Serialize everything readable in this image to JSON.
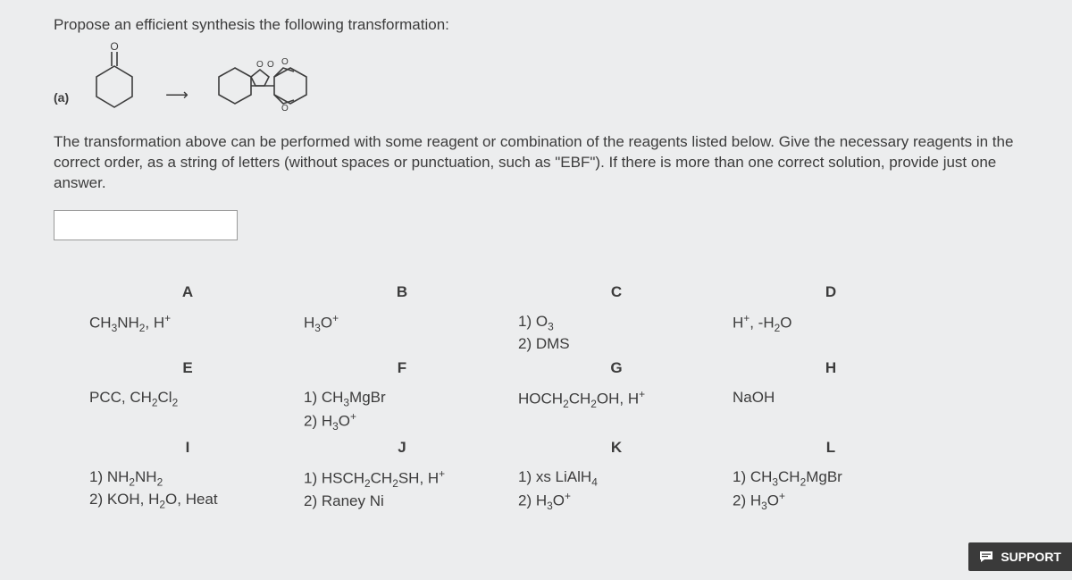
{
  "title": "Propose an efficient synthesis the following transformation:",
  "part_label": "(a)",
  "instructions": "The transformation above can be performed with some reagent or combination of the reagents listed below. Give the necessary reagents in the correct order, as a string of letters (without spaces or punctuation, such as \"EBF\"). If there is more than one correct solution, provide just one answer.",
  "answer_value": "",
  "columns": [
    "A",
    "B",
    "C",
    "D",
    "E",
    "F",
    "G",
    "H",
    "I",
    "J",
    "K",
    "L"
  ],
  "reagents": {
    "A": "CH<sub>3</sub>NH<sub>2</sub>, H<sup>+</sup>",
    "B": "H<sub>3</sub>O<sup>+</sup>",
    "C": "1) O<sub>3</sub><br>2) DMS",
    "D": "H<sup>+</sup>, -H<sub>2</sub>O",
    "E": "PCC, CH<sub>2</sub>Cl<sub>2</sub>",
    "F": "1) CH<sub>3</sub>MgBr<br>2) H<sub>3</sub>O<sup>+</sup>",
    "G": "HOCH<sub>2</sub>CH<sub>2</sub>OH, H<sup>+</sup>",
    "H": "NaOH",
    "I": "1) NH<sub>2</sub>NH<sub>2</sub><br>2) KOH, H<sub>2</sub>O, Heat",
    "J": "1) HSCH<sub>2</sub>CH<sub>2</sub>SH, H<sup>+</sup><br>2) Raney Ni",
    "K": "1) xs LiAlH<sub>4</sub><br>2) H<sub>3</sub>O<sup>+</sup>",
    "L": "1) CH<sub>3</sub>CH<sub>2</sub>MgBr<br>2) H<sub>3</sub>O<sup>+</sup>"
  },
  "support_label": "SUPPORT",
  "arrow_glyph": "⟶",
  "colors": {
    "background": "#ecedee",
    "text": "#3c3c3c",
    "support_bg": "#3a3a3a",
    "support_text": "#ffffff",
    "input_border": "#9a9a9a",
    "input_bg": "#ffffff"
  }
}
